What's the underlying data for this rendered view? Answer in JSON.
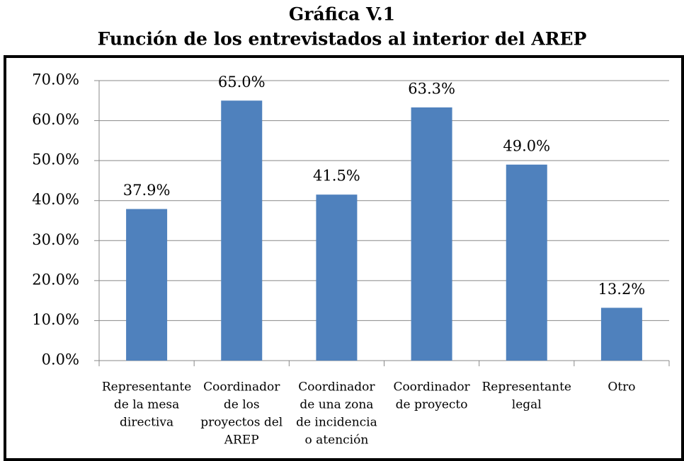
{
  "chart_data": {
    "type": "bar",
    "title": "Gráfica V.1",
    "subtitle": "Función de los entrevistados al interior del AREP",
    "categories": [
      [
        "Representante",
        "de la mesa",
        "directiva"
      ],
      [
        "Coordinador",
        "de los",
        "proyectos del",
        "AREP"
      ],
      [
        "Coordinador",
        "de una zona",
        "de incidencia",
        "o atención"
      ],
      [
        "Coordinador",
        "de proyecto"
      ],
      [
        "Representante",
        "legal"
      ],
      [
        "Otro"
      ]
    ],
    "values": [
      37.9,
      65.0,
      41.5,
      63.3,
      49.0,
      13.2
    ],
    "value_labels": [
      "37.9%",
      "65.0%",
      "41.5%",
      "63.3%",
      "49.0%",
      "13.2%"
    ],
    "color": "#4f81bd",
    "ylim": [
      0,
      70
    ],
    "yticks": [
      {
        "value": 0,
        "label": "0.0%"
      },
      {
        "value": 10,
        "label": "10.0%"
      },
      {
        "value": 20,
        "label": "20.0%"
      },
      {
        "value": 30,
        "label": "30.0%"
      },
      {
        "value": 40,
        "label": "40.0%"
      },
      {
        "value": 50,
        "label": "50.0%"
      },
      {
        "value": 60,
        "label": "60.0%"
      },
      {
        "value": 70,
        "label": "70.0%"
      }
    ],
    "grid": true
  }
}
